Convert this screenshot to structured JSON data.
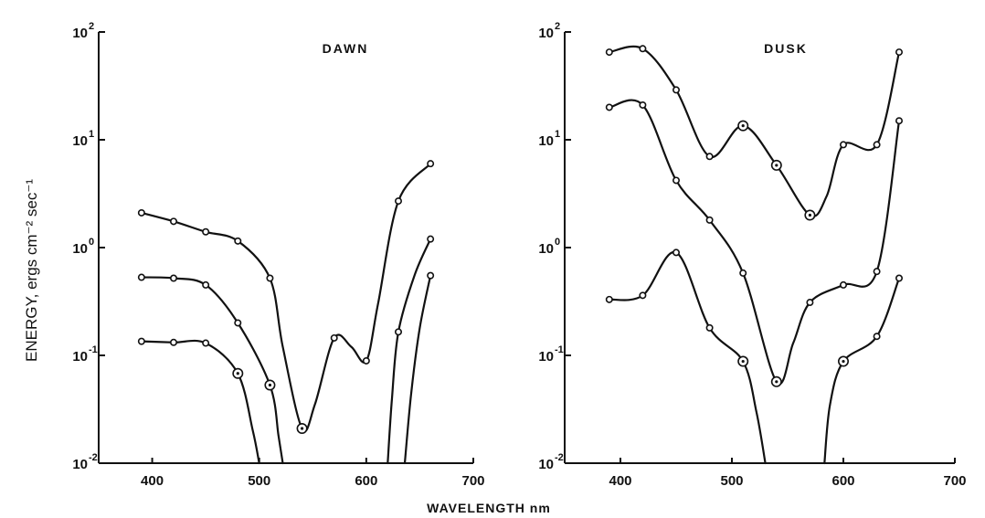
{
  "figure": {
    "xlabel": "WAVELENGTH nm",
    "ylabel": "ENERGY, ergs cm⁻² sec⁻¹"
  },
  "chart_data": [
    {
      "type": "line",
      "title": "DAWN",
      "xlabel": "WAVELENGTH nm",
      "ylabel": "ENERGY, ergs cm⁻² sec⁻¹",
      "xlim": [
        350,
        700
      ],
      "ylim": [
        0.01,
        100
      ],
      "yscale": "log",
      "xticks": [
        400,
        500,
        600,
        700
      ],
      "xtick_labels": [
        "400",
        "500",
        "600",
        "700"
      ],
      "yticks": [
        0.01,
        0.1,
        1,
        10,
        100
      ],
      "ytick_mantissa": [
        "10",
        "10",
        "10",
        "10",
        "10"
      ],
      "ytick_exponents": [
        "-2",
        "-1",
        "0",
        "1",
        "2"
      ],
      "grid": false,
      "series": [
        {
          "points": [
            [
              390,
              2.1
            ],
            [
              420,
              1.75
            ],
            [
              450,
              1.4
            ],
            [
              480,
              1.15
            ],
            [
              510,
              0.52
            ],
            [
              540,
              0.021
            ],
            [
              570,
              0.145
            ],
            [
              600,
              0.089
            ],
            [
              630,
              2.7
            ],
            [
              660,
              6.0
            ]
          ],
          "circled": [
            540
          ],
          "curve_segments": [
            [
              [
                390,
                2.1
              ],
              [
                420,
                1.75
              ],
              [
                450,
                1.4
              ],
              [
                480,
                1.15
              ],
              [
                510,
                0.52
              ],
              [
                522,
                0.12
              ],
              [
                540,
                0.021
              ],
              [
                552,
                0.035
              ],
              [
                570,
                0.145
              ],
              [
                586,
                0.12
              ],
              [
                600,
                0.089
              ],
              [
                611,
                0.3
              ],
              [
                630,
                2.7
              ],
              [
                660,
                6.0
              ]
            ]
          ]
        },
        {
          "points": [
            [
              390,
              0.53
            ],
            [
              420,
              0.52
            ],
            [
              450,
              0.45
            ],
            [
              480,
              0.2
            ],
            [
              510,
              0.053
            ],
            [
              630,
              0.165
            ],
            [
              660,
              1.2
            ]
          ],
          "circled": [
            510
          ],
          "curve_segments": [
            [
              [
                390,
                0.53
              ],
              [
                420,
                0.52
              ],
              [
                450,
                0.45
              ],
              [
                480,
                0.2
              ],
              [
                510,
                0.053
              ],
              [
                518,
                0.018
              ],
              [
                522,
                0.01
              ]
            ],
            [
              [
                620,
                0.01
              ],
              [
                624,
                0.04
              ],
              [
                630,
                0.165
              ],
              [
                645,
                0.55
              ],
              [
                660,
                1.2
              ]
            ]
          ]
        },
        {
          "points": [
            [
              390,
              0.135
            ],
            [
              420,
              0.132
            ],
            [
              450,
              0.13
            ],
            [
              480,
              0.068
            ],
            [
              660,
              0.55
            ]
          ],
          "circled": [
            480
          ],
          "curve_segments": [
            [
              [
                390,
                0.135
              ],
              [
                420,
                0.132
              ],
              [
                450,
                0.13
              ],
              [
                480,
                0.068
              ],
              [
                494,
                0.02
              ],
              [
                500,
                0.01
              ]
            ],
            [
              [
                636,
                0.01
              ],
              [
                642,
                0.045
              ],
              [
                650,
                0.18
              ],
              [
                660,
                0.55
              ]
            ]
          ]
        }
      ]
    },
    {
      "type": "line",
      "title": "DUSK",
      "xlabel": "WAVELENGTH nm",
      "ylabel": "ENERGY, ergs cm⁻² sec⁻¹",
      "xlim": [
        350,
        700
      ],
      "ylim": [
        0.01,
        100
      ],
      "yscale": "log",
      "xticks": [
        400,
        500,
        600,
        700
      ],
      "xtick_labels": [
        "400",
        "500",
        "600",
        "700"
      ],
      "yticks": [
        0.01,
        0.1,
        1,
        10,
        100
      ],
      "ytick_mantissa": [
        "10",
        "10",
        "10",
        "10",
        "10"
      ],
      "ytick_exponents": [
        "-2",
        "-1",
        "0",
        "1",
        "2"
      ],
      "grid": false,
      "series": [
        {
          "points": [
            [
              390,
              65
            ],
            [
              420,
              70
            ],
            [
              450,
              29
            ],
            [
              480,
              7
            ],
            [
              510,
              13.5
            ],
            [
              540,
              5.8
            ],
            [
              570,
              2.0
            ],
            [
              600,
              9.0
            ],
            [
              630,
              9.0
            ],
            [
              650,
              65
            ]
          ],
          "circled": [
            510,
            540,
            570
          ],
          "curve_segments": [
            [
              [
                390,
                65
              ],
              [
                420,
                70
              ],
              [
                450,
                29
              ],
              [
                480,
                7
              ],
              [
                510,
                13.5
              ],
              [
                540,
                5.8
              ],
              [
                570,
                2.0
              ],
              [
                585,
                3.0
              ],
              [
                600,
                9.0
              ],
              [
                630,
                9.0
              ],
              [
                650,
                65
              ]
            ]
          ]
        },
        {
          "points": [
            [
              390,
              20
            ],
            [
              420,
              21
            ],
            [
              450,
              4.2
            ],
            [
              480,
              1.8
            ],
            [
              510,
              0.58
            ],
            [
              540,
              0.057
            ],
            [
              570,
              0.31
            ],
            [
              600,
              0.45
            ],
            [
              630,
              0.6
            ],
            [
              650,
              15
            ]
          ],
          "circled": [
            540
          ],
          "curve_segments": [
            [
              [
                390,
                20
              ],
              [
                420,
                21
              ],
              [
                450,
                4.2
              ],
              [
                480,
                1.8
              ],
              [
                510,
                0.58
              ],
              [
                540,
                0.057
              ],
              [
                555,
                0.13
              ],
              [
                570,
                0.31
              ],
              [
                600,
                0.45
              ],
              [
                630,
                0.6
              ],
              [
                650,
                15
              ]
            ]
          ]
        },
        {
          "points": [
            [
              390,
              0.33
            ],
            [
              420,
              0.36
            ],
            [
              450,
              0.9
            ],
            [
              480,
              0.18
            ],
            [
              510,
              0.088
            ],
            [
              600,
              0.088
            ],
            [
              630,
              0.15
            ],
            [
              650,
              0.52
            ]
          ],
          "circled": [
            510,
            600
          ],
          "curve_segments": [
            [
              [
                390,
                0.33
              ],
              [
                420,
                0.36
              ],
              [
                450,
                0.9
              ],
              [
                480,
                0.18
              ],
              [
                510,
                0.088
              ],
              [
                522,
                0.03
              ],
              [
                530,
                0.01
              ]
            ],
            [
              [
                583,
                0.01
              ],
              [
                588,
                0.035
              ],
              [
                600,
                0.088
              ],
              [
                630,
                0.15
              ],
              [
                650,
                0.52
              ]
            ]
          ]
        }
      ]
    }
  ]
}
